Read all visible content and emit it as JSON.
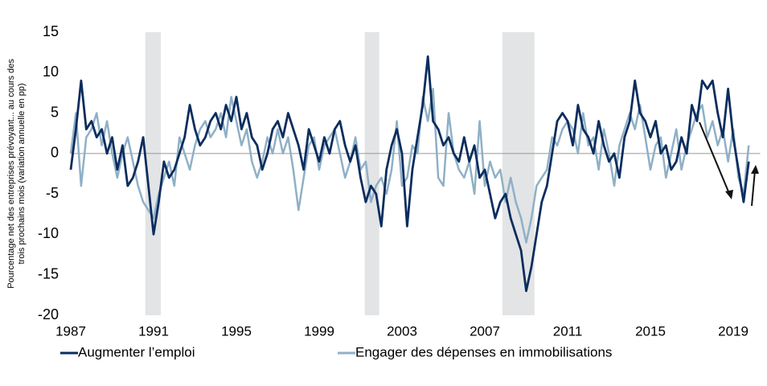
{
  "chart_data": {
    "type": "line",
    "ylabel": [
      "Pourcentage net des entreprises prévoyant... au cours des",
      "trois prochains mois (variation annuelle en pp)"
    ],
    "x": [
      1987,
      1987.25,
      1987.5,
      1987.75,
      1988,
      1988.25,
      1988.5,
      1988.75,
      1989,
      1989.25,
      1989.5,
      1989.75,
      1990,
      1990.25,
      1990.5,
      1990.75,
      1991,
      1991.25,
      1991.5,
      1991.75,
      1992,
      1992.25,
      1992.5,
      1992.75,
      1993,
      1993.25,
      1993.5,
      1993.75,
      1994,
      1994.25,
      1994.5,
      1994.75,
      1995,
      1995.25,
      1995.5,
      1995.75,
      1996,
      1996.25,
      1996.5,
      1996.75,
      1997,
      1997.25,
      1997.5,
      1997.75,
      1998,
      1998.25,
      1998.5,
      1998.75,
      1999,
      1999.25,
      1999.5,
      1999.75,
      2000,
      2000.25,
      2000.5,
      2000.75,
      2001,
      2001.25,
      2001.5,
      2001.75,
      2002,
      2002.25,
      2002.5,
      2002.75,
      2003,
      2003.25,
      2003.5,
      2003.75,
      2004,
      2004.25,
      2004.5,
      2004.75,
      2005,
      2005.25,
      2005.5,
      2005.75,
      2006,
      2006.25,
      2006.5,
      2006.75,
      2007,
      2007.25,
      2007.5,
      2007.75,
      2008,
      2008.25,
      2008.5,
      2008.75,
      2009,
      2009.25,
      2009.5,
      2009.75,
      2010,
      2010.25,
      2010.5,
      2010.75,
      2011,
      2011.25,
      2011.5,
      2011.75,
      2012,
      2012.25,
      2012.5,
      2012.75,
      2013,
      2013.25,
      2013.5,
      2013.75,
      2014,
      2014.25,
      2014.5,
      2014.75,
      2015,
      2015.25,
      2015.5,
      2015.75,
      2016,
      2016.25,
      2016.5,
      2016.75,
      2017,
      2017.25,
      2017.5,
      2017.75,
      2018,
      2018.25,
      2018.5,
      2018.75,
      2019,
      2019.25,
      2019.5,
      2019.75
    ],
    "series": [
      {
        "name": "Augmenter l’emploi",
        "color": "#0b2d5e",
        "values": [
          -2,
          3,
          9,
          3,
          4,
          2,
          3,
          0,
          2,
          -2,
          1,
          -4,
          -3,
          -1,
          2,
          -4,
          -10,
          -6,
          -1,
          -3,
          -2,
          0,
          2,
          6,
          3,
          1,
          2,
          4,
          5,
          3,
          6,
          4,
          7,
          3,
          5,
          2,
          1,
          -2,
          0,
          3,
          4,
          2,
          5,
          3,
          1,
          -2,
          3,
          1,
          -1,
          2,
          0,
          3,
          4,
          1,
          -1,
          1,
          -3,
          -6,
          -4,
          -5,
          -9,
          -2,
          1,
          3,
          0,
          -9,
          -2,
          2,
          6,
          12,
          4,
          3,
          1,
          2,
          0,
          -1,
          2,
          -1,
          1,
          -3,
          -2,
          -5,
          -8,
          -6,
          -5,
          -8,
          -10,
          -12,
          -17,
          -14,
          -10,
          -6,
          -4,
          0,
          4,
          5,
          4,
          1,
          6,
          3,
          2,
          0,
          4,
          1,
          -1,
          0,
          -3,
          2,
          4,
          9,
          5,
          4,
          2,
          4,
          0,
          1,
          -2,
          -1,
          2,
          0,
          6,
          4,
          9,
          8,
          9,
          5,
          2,
          8,
          2,
          -2,
          -6,
          -1
        ]
      },
      {
        "name": "Engager des dépenses en immobilisations",
        "color": "#8fb0c6",
        "values": [
          0,
          5,
          -4,
          2,
          3,
          5,
          1,
          4,
          0,
          -3,
          0,
          2,
          -1,
          -4,
          -6,
          -7,
          -8,
          -5,
          -3,
          -1,
          -4,
          2,
          0,
          -2,
          1,
          3,
          4,
          2,
          3,
          5,
          2,
          7,
          4,
          1,
          3,
          -1,
          -3,
          -1,
          2,
          0,
          3,
          0,
          2,
          -2,
          -7,
          -3,
          1,
          2,
          -2,
          1,
          2,
          3,
          0,
          -3,
          -1,
          2,
          -2,
          -1,
          -6,
          -4,
          -3,
          -5,
          -2,
          4,
          -4,
          -3,
          1,
          0,
          7,
          4,
          8,
          -3,
          -4,
          5,
          0,
          -2,
          -3,
          -1,
          -5,
          4,
          -4,
          -1,
          -3,
          -2,
          -6,
          -3,
          -6,
          -8,
          -11,
          -8,
          -4,
          -3,
          -2,
          2,
          1,
          3,
          4,
          3,
          0,
          5,
          1,
          2,
          -2,
          3,
          0,
          -4,
          1,
          3,
          5,
          3,
          6,
          2,
          -2,
          1,
          2,
          -3,
          0,
          3,
          -2,
          1,
          3,
          5,
          6,
          2,
          4,
          1,
          3,
          -1,
          3,
          -3,
          -5,
          1
        ]
      }
    ],
    "shaded_spans": [
      [
        1990.6,
        1991.35
      ],
      [
        2001.2,
        2001.9
      ],
      [
        2007.85,
        2009.4
      ]
    ],
    "xlim": [
      1987,
      2020.3
    ],
    "xticks": [
      1987,
      1991,
      1995,
      1999,
      2003,
      2007,
      2011,
      2015,
      2019
    ],
    "ylim": [
      -20,
      15
    ],
    "yticks": [
      15,
      10,
      5,
      0,
      -5,
      -10,
      -15,
      -20
    ],
    "zero_line": true
  }
}
